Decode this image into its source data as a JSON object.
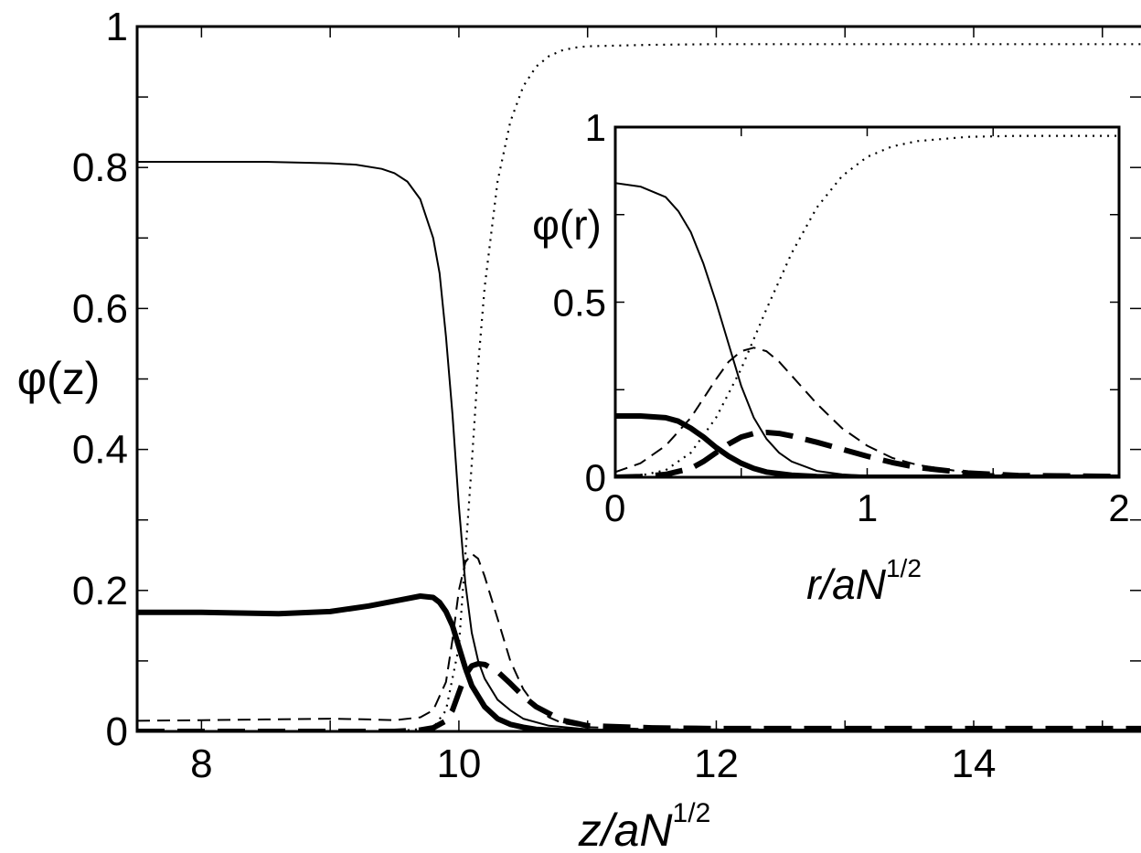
{
  "chart_data": [
    {
      "type": "line",
      "xlabel": {
        "main": "z/aN",
        "sup": "1/2"
      },
      "ylabel": "φ(z)",
      "xlim": [
        7.5,
        15.3
      ],
      "ylim": [
        0,
        1
      ],
      "xticks": [
        8,
        10,
        12,
        14
      ],
      "yticks": [
        0,
        0.2,
        0.4,
        0.6,
        0.8,
        1
      ],
      "ytick_labels": [
        "0",
        "0.2",
        "0.4",
        "0.6",
        "0.8",
        "1"
      ],
      "xtick_labels": [
        "8",
        "10",
        "12",
        "14"
      ],
      "grid": false,
      "legend": "none",
      "series": [
        {
          "style": "thin-solid",
          "x": [
            7.5,
            8.0,
            8.5,
            9.0,
            9.2,
            9.4,
            9.5,
            9.6,
            9.7,
            9.8,
            9.85,
            9.9,
            9.95,
            10.0,
            10.05,
            10.1,
            10.15,
            10.2,
            10.3,
            10.4,
            10.5,
            10.7,
            11.0,
            11.5,
            15.3
          ],
          "values": [
            0.808,
            0.808,
            0.808,
            0.806,
            0.804,
            0.798,
            0.792,
            0.78,
            0.755,
            0.7,
            0.65,
            0.56,
            0.45,
            0.32,
            0.21,
            0.14,
            0.1,
            0.075,
            0.045,
            0.03,
            0.018,
            0.008,
            0.003,
            0.001,
            0.001
          ]
        },
        {
          "style": "dotted",
          "x": [
            7.5,
            9.5,
            9.8,
            9.9,
            10.0,
            10.05,
            10.1,
            10.15,
            10.2,
            10.3,
            10.4,
            10.5,
            10.6,
            10.7,
            10.8,
            10.9,
            11.0,
            11.5,
            12.0,
            15.3
          ],
          "values": [
            0.0,
            0.0,
            0.005,
            0.03,
            0.12,
            0.25,
            0.38,
            0.52,
            0.63,
            0.78,
            0.865,
            0.915,
            0.943,
            0.958,
            0.966,
            0.97,
            0.972,
            0.974,
            0.975,
            0.975
          ]
        },
        {
          "style": "thin-dashed",
          "x": [
            7.5,
            8.0,
            8.5,
            9.0,
            9.3,
            9.5,
            9.7,
            9.8,
            9.9,
            9.95,
            10.0,
            10.05,
            10.1,
            10.15,
            10.2,
            10.3,
            10.4,
            10.5,
            10.6,
            10.7,
            10.8,
            11.0,
            11.5,
            15.3
          ],
          "values": [
            0.015,
            0.016,
            0.017,
            0.018,
            0.017,
            0.016,
            0.02,
            0.03,
            0.07,
            0.13,
            0.2,
            0.24,
            0.252,
            0.245,
            0.22,
            0.16,
            0.1,
            0.06,
            0.035,
            0.02,
            0.012,
            0.006,
            0.003,
            0.002
          ]
        },
        {
          "style": "thick-solid",
          "x": [
            7.5,
            8.0,
            8.3,
            8.6,
            9.0,
            9.3,
            9.5,
            9.7,
            9.8,
            9.85,
            9.9,
            9.95,
            10.0,
            10.05,
            10.1,
            10.2,
            10.3,
            10.4,
            10.5,
            10.6,
            10.8,
            11.0,
            15.3
          ],
          "values": [
            0.169,
            0.169,
            0.168,
            0.167,
            0.17,
            0.178,
            0.185,
            0.192,
            0.19,
            0.183,
            0.17,
            0.15,
            0.12,
            0.09,
            0.065,
            0.035,
            0.018,
            0.01,
            0.006,
            0.003,
            0.001,
            0.0,
            0.0
          ]
        },
        {
          "style": "thick-dashed",
          "x": [
            7.5,
            9.0,
            9.5,
            9.7,
            9.8,
            9.9,
            9.95,
            10.0,
            10.05,
            10.1,
            10.15,
            10.2,
            10.3,
            10.4,
            10.5,
            10.6,
            10.8,
            11.0,
            11.5,
            12.0,
            15.3
          ],
          "values": [
            0.0,
            0.0,
            0.0,
            0.002,
            0.005,
            0.015,
            0.03,
            0.055,
            0.08,
            0.093,
            0.096,
            0.095,
            0.085,
            0.068,
            0.05,
            0.035,
            0.016,
            0.008,
            0.005,
            0.004,
            0.004
          ]
        }
      ]
    },
    {
      "type": "line",
      "role": "inset",
      "xlabel": {
        "main": "r/aN",
        "sup": "1/2"
      },
      "ylabel": "φ(r)",
      "xlim": [
        0,
        2
      ],
      "ylim": [
        0,
        1
      ],
      "xticks": [
        0,
        1,
        2
      ],
      "yticks": [
        0,
        0.5,
        1
      ],
      "ytick_labels": [
        "0",
        "0.5",
        "1"
      ],
      "xtick_labels": [
        "0",
        "1",
        "2"
      ],
      "grid": false,
      "legend": "none",
      "series": [
        {
          "style": "thin-solid",
          "x": [
            0,
            0.1,
            0.2,
            0.25,
            0.3,
            0.35,
            0.4,
            0.45,
            0.5,
            0.55,
            0.6,
            0.65,
            0.7,
            0.8,
            0.9,
            1.0,
            1.2,
            2.0
          ],
          "values": [
            0.84,
            0.83,
            0.8,
            0.76,
            0.7,
            0.61,
            0.5,
            0.38,
            0.26,
            0.17,
            0.11,
            0.07,
            0.045,
            0.018,
            0.008,
            0.004,
            0.001,
            0.0
          ]
        },
        {
          "style": "dotted",
          "x": [
            0,
            0.1,
            0.2,
            0.3,
            0.4,
            0.5,
            0.6,
            0.7,
            0.8,
            0.9,
            1.0,
            1.1,
            1.2,
            1.4,
            1.6,
            2.0
          ],
          "values": [
            0.0,
            0.005,
            0.02,
            0.07,
            0.17,
            0.31,
            0.48,
            0.64,
            0.77,
            0.86,
            0.915,
            0.945,
            0.96,
            0.972,
            0.975,
            0.975
          ]
        },
        {
          "style": "thin-dashed",
          "x": [
            0,
            0.1,
            0.2,
            0.3,
            0.4,
            0.45,
            0.5,
            0.55,
            0.6,
            0.65,
            0.7,
            0.8,
            0.9,
            1.0,
            1.1,
            1.2,
            1.4,
            1.6,
            2.0
          ],
          "values": [
            0.015,
            0.04,
            0.09,
            0.17,
            0.28,
            0.33,
            0.36,
            0.37,
            0.36,
            0.33,
            0.29,
            0.21,
            0.14,
            0.09,
            0.055,
            0.035,
            0.013,
            0.005,
            0.002
          ]
        },
        {
          "style": "thick-solid",
          "x": [
            0,
            0.1,
            0.2,
            0.25,
            0.3,
            0.35,
            0.4,
            0.45,
            0.5,
            0.55,
            0.6,
            0.7,
            0.8,
            0.9,
            1.0,
            2.0
          ],
          "values": [
            0.175,
            0.175,
            0.17,
            0.16,
            0.14,
            0.115,
            0.085,
            0.06,
            0.04,
            0.025,
            0.015,
            0.006,
            0.002,
            0.001,
            0.0,
            0.0
          ]
        },
        {
          "style": "thick-dashed",
          "x": [
            0,
            0.1,
            0.2,
            0.3,
            0.35,
            0.4,
            0.45,
            0.5,
            0.55,
            0.6,
            0.65,
            0.7,
            0.8,
            0.9,
            1.0,
            1.1,
            1.2,
            1.4,
            1.6,
            2.0
          ],
          "values": [
            0.0,
            0.002,
            0.008,
            0.025,
            0.045,
            0.07,
            0.095,
            0.115,
            0.125,
            0.128,
            0.125,
            0.118,
            0.1,
            0.08,
            0.06,
            0.042,
            0.028,
            0.012,
            0.005,
            0.002
          ]
        }
      ]
    }
  ]
}
